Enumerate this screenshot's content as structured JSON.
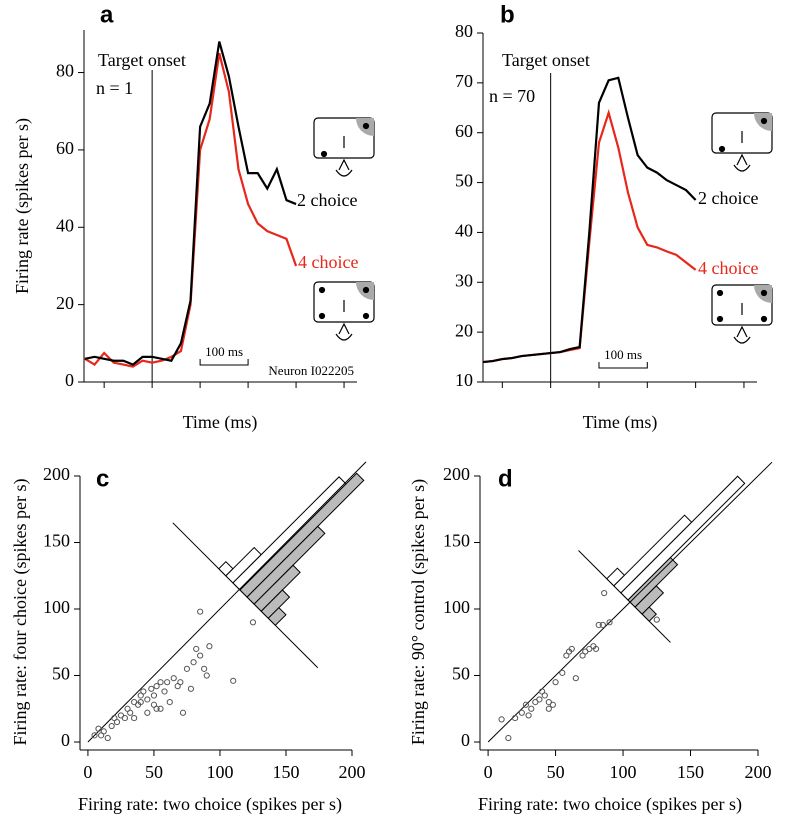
{
  "chart_data": [
    {
      "type": "line",
      "panel_label": "a",
      "ylabel": "Firing rate (spikes per s)",
      "xlabel": "Time (ms)",
      "onset_label": "Target onset",
      "n_label": "n = 1",
      "neuron_label": "Neuron I022205",
      "x": [
        -140,
        -120,
        -100,
        -80,
        -60,
        -40,
        -20,
        0,
        20,
        40,
        60,
        80,
        100,
        120,
        140,
        160,
        180,
        200,
        220,
        240,
        260,
        280,
        300
      ],
      "series": [
        {
          "name": "2 choice",
          "color": "#000000",
          "values": [
            6,
            6.5,
            6,
            5.5,
            5.5,
            4.5,
            6.5,
            6.5,
            6,
            5.5,
            10,
            21,
            66,
            72,
            88,
            79,
            66,
            54,
            54,
            50,
            55,
            47,
            46
          ]
        },
        {
          "name": "4 choice",
          "color": "#e8261a",
          "values": [
            6,
            4.5,
            7.5,
            5,
            4.5,
            4,
            5.5,
            5,
            5.5,
            6.5,
            8,
            20,
            60,
            68,
            85,
            75,
            55,
            46,
            41,
            39,
            38,
            37,
            30
          ]
        }
      ],
      "xlim": [
        -142,
        427
      ],
      "xticks": [
        -100,
        0,
        100,
        200,
        300,
        400
      ],
      "xtick_labels": false,
      "ylim": [
        0,
        91
      ],
      "yticks": [
        0,
        20,
        40,
        60,
        80
      ],
      "vline": 0,
      "scale_bar": {
        "from": 100,
        "to": 200,
        "label": "100 ms"
      }
    },
    {
      "type": "line",
      "panel_label": "b",
      "xlabel": "Time (ms)",
      "onset_label": "Target onset",
      "n_label": "n = 70",
      "x": [
        -140,
        -120,
        -100,
        -80,
        -60,
        -40,
        -20,
        0,
        20,
        40,
        60,
        80,
        100,
        120,
        140,
        160,
        180,
        200,
        220,
        240,
        260,
        280,
        300
      ],
      "series": [
        {
          "name": "2 choice",
          "color": "#000000",
          "values": [
            14,
            14.2,
            14.6,
            14.8,
            15.2,
            15.4,
            15.6,
            15.8,
            16,
            16.6,
            17,
            40,
            66,
            70.5,
            71,
            63,
            55.5,
            53,
            52,
            50.5,
            49.5,
            48.5,
            46.5
          ]
        },
        {
          "name": "4 choice",
          "color": "#e8261a",
          "values": [
            14,
            14.2,
            14.6,
            14.8,
            15.2,
            15.4,
            15.6,
            15.8,
            16,
            16.4,
            16.8,
            38,
            58,
            64,
            57,
            48,
            41,
            37.5,
            37,
            36.2,
            35.5,
            34,
            32.5
          ]
        }
      ],
      "xlim": [
        -140,
        427
      ],
      "xticks": [
        -100,
        0,
        100,
        200,
        300,
        400
      ],
      "xtick_labels": false,
      "ylim": [
        10,
        80
      ],
      "yticks": [
        10,
        20,
        30,
        40,
        50,
        60,
        70,
        80
      ],
      "vline": 0,
      "scale_bar": {
        "from": 100,
        "to": 200,
        "label": "100 ms"
      }
    },
    {
      "type": "scatter",
      "panel_label": "c",
      "ylabel": "Firing rate: four choice (spikes per s)",
      "xlabel": "Firing rate: two choice (spikes per s)",
      "x": [
        5,
        8,
        10,
        12,
        15,
        18,
        20,
        22,
        25,
        28,
        30,
        32,
        35,
        38,
        40,
        42,
        45,
        48,
        50,
        52,
        55,
        58,
        60,
        62,
        55,
        65,
        68,
        70,
        72,
        75,
        78,
        80,
        82,
        85,
        88,
        90,
        85,
        92,
        110,
        125,
        50,
        45,
        40,
        52,
        35
      ],
      "values": [
        5,
        10,
        5,
        8,
        3,
        12,
        18,
        15,
        20,
        18,
        25,
        22,
        30,
        28,
        35,
        38,
        32,
        40,
        35,
        42,
        45,
        38,
        45,
        30,
        25,
        48,
        42,
        45,
        22,
        55,
        40,
        60,
        70,
        65,
        55,
        50,
        98,
        72,
        46,
        90,
        28,
        22,
        30,
        25,
        18
      ],
      "color": "#555555",
      "xlim": [
        -6,
        200
      ],
      "xticks": [
        0,
        50,
        100,
        150,
        200
      ],
      "ylim": [
        -6,
        200
      ],
      "yticks": [
        0,
        50,
        100,
        150,
        200
      ],
      "diagonal": true
    },
    {
      "type": "scatter",
      "panel_label": "d",
      "ylabel": "Firing rate: 90° control (spikes per s)",
      "xlabel": "Firing rate: two choice (spikes per s)",
      "x": [
        10,
        15,
        20,
        25,
        28,
        32,
        35,
        38,
        40,
        42,
        45,
        48,
        50,
        55,
        58,
        60,
        62,
        65,
        70,
        72,
        75,
        78,
        80,
        82,
        85,
        86,
        90,
        125,
        30,
        45
      ],
      "values": [
        17,
        3,
        18,
        22,
        28,
        25,
        30,
        32,
        38,
        35,
        30,
        28,
        45,
        52,
        65,
        68,
        70,
        48,
        65,
        68,
        70,
        72,
        70,
        88,
        88,
        112,
        90,
        92,
        20,
        25
      ],
      "color": "#555555",
      "xlim": [
        -6,
        200
      ],
      "xticks": [
        0,
        50,
        100,
        150,
        200
      ],
      "ylim": [
        -6,
        200
      ],
      "yticks": [
        0,
        50,
        100,
        150,
        200
      ],
      "diagonal": true
    }
  ]
}
